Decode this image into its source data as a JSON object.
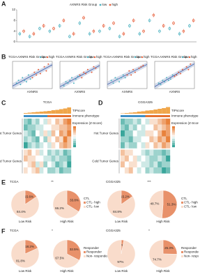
{
  "panel_labels": [
    "A",
    "B",
    "C",
    "D",
    "E",
    "F"
  ],
  "chart_data": [
    {
      "type": "dot",
      "legend_title": "AXNRS Risk Group",
      "categories": [
        null,
        null,
        null,
        null,
        null,
        null,
        null,
        null,
        null,
        null,
        null,
        null,
        null,
        null,
        null,
        null,
        null,
        null
      ],
      "series": [
        {
          "name": "low",
          "color": "#4fb3c2",
          "values": [
            3,
            2,
            5,
            4,
            6,
            2,
            7,
            3,
            4,
            5,
            2,
            6,
            3,
            8,
            4,
            5,
            3,
            6
          ]
        },
        {
          "name": "high",
          "color": "#e8603c",
          "values": [
            4,
            3,
            6,
            5,
            8,
            3,
            9,
            4,
            6,
            7,
            3,
            8,
            4,
            10,
            6,
            7,
            4,
            8
          ]
        }
      ],
      "ylim": [
        0,
        12
      ],
      "yticks": [
        0,
        4,
        8,
        12
      ]
    },
    {
      "type": "scatter",
      "title": "TCGA",
      "legend_title": "AXNRS Risk Group",
      "xlabel": "AXNRS",
      "xlim": [
        0,
        1
      ],
      "ylim": [
        0,
        10
      ],
      "series": [
        {
          "name": "low",
          "color": "#4fb3c2",
          "x": [
            0.1,
            0.15,
            0.2,
            0.25,
            0.3,
            0.35,
            0.4,
            0.45
          ],
          "values": [
            2,
            3,
            1.5,
            4,
            3,
            2.5,
            5,
            3.5
          ]
        },
        {
          "name": "high",
          "color": "#e8603c",
          "x": [
            0.5,
            0.55,
            0.6,
            0.65,
            0.7,
            0.8,
            0.85,
            0.9
          ],
          "values": [
            4,
            6,
            5,
            7,
            5.5,
            8,
            6.5,
            9
          ]
        }
      ]
    },
    {
      "type": "scatter",
      "title": "TCGA",
      "legend_title": "AXNRS Risk Group",
      "xlabel": "AXNRS",
      "xlim": [
        0,
        1
      ],
      "ylim": [
        0,
        10
      ],
      "series": [
        {
          "name": "low",
          "color": "#4fb3c2",
          "x": [
            0.1,
            0.15,
            0.2,
            0.25,
            0.3,
            0.35,
            0.4,
            0.45
          ],
          "values": [
            1,
            2.5,
            2,
            3,
            4,
            2,
            3.5,
            4.5
          ]
        },
        {
          "name": "high",
          "color": "#e8603c",
          "x": [
            0.5,
            0.55,
            0.6,
            0.65,
            0.7,
            0.8,
            0.85,
            0.9
          ],
          "values": [
            5,
            4,
            6,
            5.5,
            7,
            6,
            8,
            7.5
          ]
        }
      ]
    },
    {
      "type": "scatter",
      "title": "TCGA",
      "legend_title": "AXNRS Risk Group",
      "xlabel": "AXNRS",
      "xlim": [
        0,
        1
      ],
      "ylim": [
        0,
        10
      ],
      "series": [
        {
          "name": "low",
          "color": "#4fb3c2",
          "x": [
            0.1,
            0.15,
            0.2,
            0.25,
            0.3,
            0.35,
            0.4,
            0.45
          ],
          "values": [
            3,
            2,
            4,
            3.5,
            2.5,
            4,
            5,
            4
          ]
        },
        {
          "name": "high",
          "color": "#e8603c",
          "x": [
            0.5,
            0.55,
            0.6,
            0.65,
            0.7,
            0.8,
            0.85,
            0.9
          ],
          "values": [
            5,
            6.5,
            5,
            7,
            6,
            7.5,
            8,
            8.5
          ]
        }
      ]
    },
    {
      "type": "scatter",
      "title": "TCGA",
      "legend_title": "AXNRS Risk Group",
      "xlabel": "AXNRS",
      "xlim": [
        0,
        1
      ],
      "ylim": [
        0,
        10
      ],
      "series": [
        {
          "name": "low",
          "color": "#4fb3c2",
          "x": [
            0.1,
            0.15,
            0.2,
            0.25,
            0.3,
            0.35,
            0.4,
            0.45
          ],
          "values": [
            2,
            1.5,
            3,
            2.5,
            4,
            3,
            3.5,
            5
          ]
        },
        {
          "name": "high",
          "color": "#e8603c",
          "x": [
            0.5,
            0.55,
            0.6,
            0.65,
            0.7,
            0.8,
            0.85,
            0.9
          ],
          "values": [
            4.5,
            5,
            6,
            5.5,
            7,
            8,
            7,
            9
          ]
        }
      ]
    },
    {
      "type": "heatmap",
      "title": "TCGA",
      "top_label": "TIPscore",
      "annotation_label": "Immune phenotype",
      "legend_title": "Expression (Z-Score)",
      "zlim": [
        -2,
        2
      ],
      "tlim": [
        0,
        1
      ],
      "tipscore": [
        0.1,
        0.15,
        0.2,
        0.25,
        0.3,
        0.35,
        0.4,
        0.5,
        0.55,
        0.65,
        0.75,
        0.9
      ],
      "row_groups": [
        {
          "name": "Hot Tumor Genes",
          "rows": [
            [
              -1,
              -1.5,
              -0.5,
              -1,
              0,
              -0.5,
              0.5,
              0,
              1,
              0.5,
              1.5,
              2
            ],
            [
              -1.5,
              -1,
              -1,
              -0.5,
              -0.5,
              0,
              0,
              0.5,
              0.5,
              1,
              1,
              1.5
            ],
            [
              -0.5,
              -1,
              -1.5,
              0,
              -0.5,
              0.5,
              -0.5,
              1,
              0,
              1.5,
              1,
              2
            ],
            [
              -1,
              -0.5,
              -1,
              -1.5,
              0,
              -1,
              0.5,
              0,
              1,
              0.5,
              2,
              1
            ],
            [
              -2,
              -1,
              -0.5,
              -1,
              -0.5,
              0,
              -0.5,
              0.5,
              0,
              1,
              1.5,
              1
            ]
          ]
        },
        {
          "name": "Cold Tumor Genes",
          "rows": [
            [
              0.5,
              1,
              0,
              0.5,
              -0.5,
              0,
              -1,
              -0.5,
              -1,
              -0.5,
              -1.5,
              -1
            ],
            [
              1,
              0.5,
              0.5,
              0,
              0,
              -0.5,
              -0.5,
              -1,
              -0.5,
              -1,
              -1,
              -1.5
            ],
            [
              0,
              0.5,
              1,
              -0.5,
              0.5,
              -1,
              0,
              -0.5,
              -1.5,
              -1,
              -0.5,
              -2
            ],
            [
              0.5,
              0,
              0.5,
              1,
              -0.5,
              0,
              -1,
              -1,
              -0.5,
              -1.5,
              -1,
              -1
            ]
          ]
        }
      ]
    },
    {
      "type": "heatmap",
      "title": "CGGA325",
      "top_label": "TIPscore",
      "annotation_label": "Immune phenotype",
      "legend_title": "Expression (Z-Score)",
      "zlim": [
        -2,
        2
      ],
      "tlim": [
        0,
        1
      ],
      "tipscore": [
        0.05,
        0.1,
        0.15,
        0.2,
        0.3,
        0.35,
        0.45,
        0.5,
        0.6,
        0.7,
        0.8,
        0.95
      ],
      "row_groups": [
        {
          "name": "Hot Tumor Genes",
          "rows": [
            [
              -1.5,
              -1,
              -1,
              -0.5,
              -1,
              0,
              -0.5,
              0.5,
              0.5,
              1,
              1.5,
              2
            ],
            [
              -1,
              -1.5,
              -0.5,
              -1,
              0,
              -0.5,
              0,
              0,
              1,
              0.5,
              1,
              1.5
            ],
            [
              -2,
              -1,
              -1,
              0,
              -0.5,
              -0.5,
              0.5,
              0.5,
              0,
              1,
              2,
              1.5
            ],
            [
              -1,
              -1,
              -1.5,
              -0.5,
              -0.5,
              0,
              0,
              1,
              0.5,
              1.5,
              1,
              2
            ],
            [
              -1.5,
              -0.5,
              -1,
              -1,
              0,
              -0.5,
              0.5,
              0,
              1,
              0.5,
              1.5,
              1
            ]
          ]
        },
        {
          "name": "Cold Tumor Genes",
          "rows": [
            [
              1,
              0.5,
              0.5,
              0,
              0,
              -0.5,
              -1,
              -0.5,
              -1,
              -1,
              -1.5,
              -1
            ],
            [
              0.5,
              1,
              0,
              0.5,
              -0.5,
              0,
              -0.5,
              -1,
              -1,
              -0.5,
              -1,
              -2
            ],
            [
              1,
              0,
              0.5,
              0.5,
              0,
              -0.5,
              -0.5,
              -1,
              -0.5,
              -1.5,
              -1,
              -1
            ],
            [
              0,
              0.5,
              1,
              0,
              -0.5,
              0,
              -1,
              -0.5,
              -1,
              -1,
              -2,
              -1.5
            ]
          ]
        }
      ]
    },
    {
      "type": "pie",
      "title": "TCGA",
      "significance": "**",
      "legend_title": "CTL",
      "categories": [
        "CTL- high",
        "CTL- low"
      ],
      "colors": [
        "#e8916a",
        "#f9dccb"
      ],
      "pies": [
        {
          "label": "Low Risk",
          "values": [
            15.6,
            84.4
          ],
          "value_labels": [
            "15.6%",
            "84.4%"
          ]
        },
        {
          "label": "High Risk",
          "values": [
            33.8,
            66.2
          ],
          "value_labels": [
            "33.8%",
            "66.2%"
          ]
        }
      ]
    },
    {
      "type": "pie",
      "title": "CGGA325",
      "significance": "***",
      "legend_title": "CTL",
      "categories": [
        "CTL- high",
        "CTL- low"
      ],
      "colors": [
        "#e8916a",
        "#f9dccb"
      ],
      "pies": [
        {
          "label": "Low Risk",
          "values": [
            15.2,
            84.8
          ],
          "value_labels": [
            "15.2%",
            "84.8%"
          ]
        },
        {
          "label": "High Risk",
          "values": [
            51.3,
            48.7
          ],
          "value_labels": [
            "51.3%",
            "48.7%"
          ]
        }
      ]
    },
    {
      "type": "pie",
      "title": "TCGA",
      "significance": "*",
      "legend_title": "Responder",
      "categories": [
        "Responder",
        "Non- responder"
      ],
      "colors": [
        "#e8916a",
        "#f9dccb"
      ],
      "pies": [
        {
          "label": "Low Risk",
          "values": [
            18.2,
            81.8
          ],
          "value_labels": [
            "18.2%",
            "81.8%"
          ]
        },
        {
          "label": "High Risk",
          "values": [
            32.5,
            67.5
          ],
          "value_labels": [
            "32.5%",
            "67.5%"
          ]
        }
      ]
    },
    {
      "type": "pie",
      "title": "CGGA325",
      "significance": "*",
      "legend_title": "Responder",
      "categories": [
        "Responder",
        "Non- responder"
      ],
      "colors": [
        "#e8916a",
        "#f9dccb"
      ],
      "pies": [
        {
          "label": "Low Risk",
          "values": [
            3,
            97
          ],
          "value_labels": [
            "3%",
            "97%"
          ]
        },
        {
          "label": "High Risk",
          "values": [
            25.3,
            74.7
          ],
          "value_labels": [
            "25.3%",
            "74.7%"
          ]
        }
      ]
    }
  ]
}
